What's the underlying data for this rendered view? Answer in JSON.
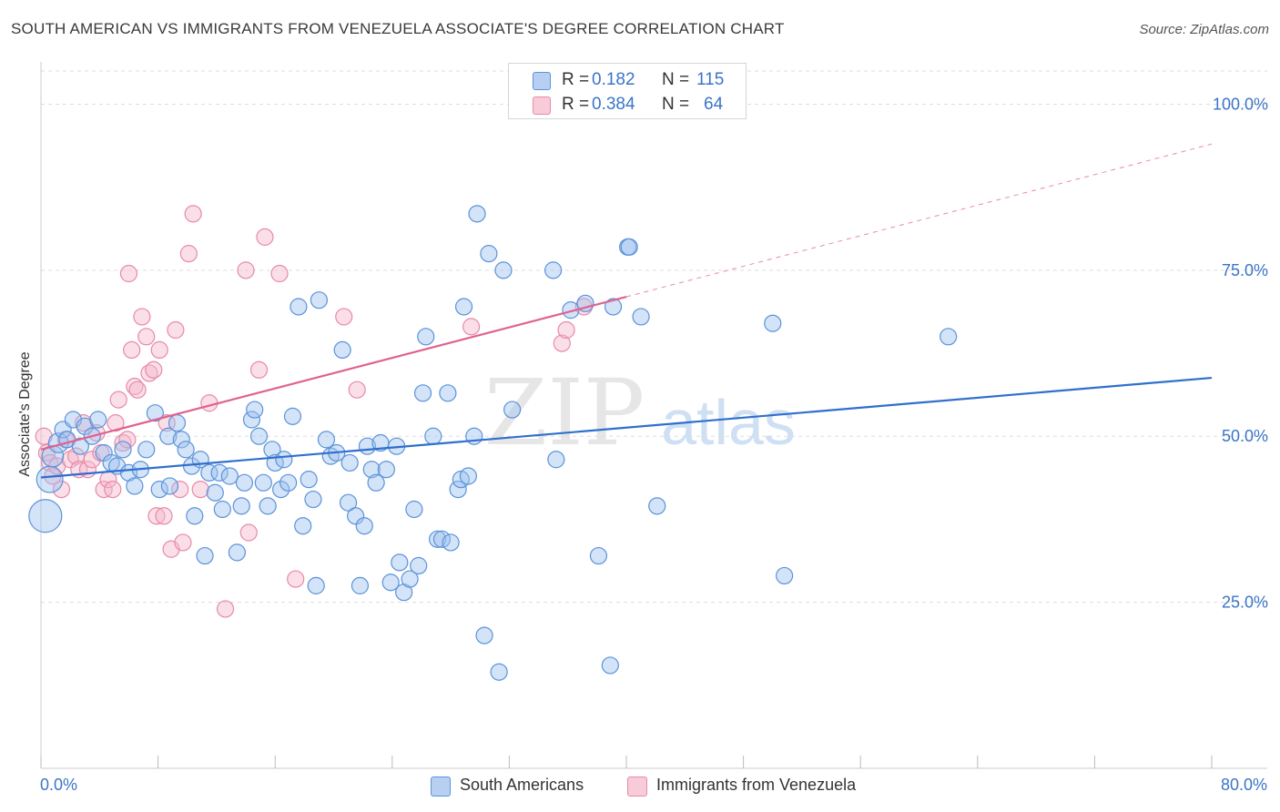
{
  "title": "SOUTH AMERICAN VS IMMIGRANTS FROM VENEZUELA ASSOCIATE'S DEGREE CORRELATION CHART",
  "source": "Source: ZipAtlas.com",
  "watermark": {
    "zip": "ZIP",
    "atlas": "atlas"
  },
  "colors": {
    "blue_fill": "#9ec2ef",
    "blue_stroke": "#5b93d9",
    "blue_line": "#2f6fcd",
    "pink_fill": "#f4b8cb",
    "pink_stroke": "#e889a8",
    "pink_line": "#e0628e",
    "axis_text": "#3b74c8",
    "grid": "#dddddd"
  },
  "legend_top": [
    {
      "r_label": "R =",
      "r_value": "0.182",
      "n_label": "N =",
      "n_value": "115",
      "color": "#9ec2ef"
    },
    {
      "r_label": "R =",
      "r_value": "0.384",
      "n_label": "N =",
      "n_value": "64",
      "color": "#f4b8cb"
    }
  ],
  "chart_data": {
    "type": "scatter",
    "title": "SOUTH AMERICAN VS IMMIGRANTS FROM VENEZUELA ASSOCIATE'S DEGREE CORRELATION CHART",
    "xlabel": "",
    "ylabel": "Associate's Degree",
    "xlim": [
      0,
      80
    ],
    "ylim": [
      0,
      105
    ],
    "x_tick_labels": [
      "0.0%",
      "80.0%"
    ],
    "y_ticks": [
      25,
      50,
      75,
      100
    ],
    "y_tick_labels": [
      "25.0%",
      "50.0%",
      "75.0%",
      "100.0%"
    ],
    "grid": true,
    "legend_position": "bottom",
    "series": [
      {
        "name": "South Americans",
        "color": "#9ec2ef",
        "trend": {
          "x": [
            0,
            80
          ],
          "y": [
            43.8,
            58.8
          ]
        },
        "points": [
          [
            0.3,
            38,
            2
          ],
          [
            0.6,
            43.5,
            1.6
          ],
          [
            0.8,
            47,
            1.3
          ],
          [
            1.2,
            49,
            1.2
          ],
          [
            1.5,
            51,
            1
          ],
          [
            1.8,
            49.5,
            1
          ],
          [
            2.2,
            52.5,
            1
          ],
          [
            2.7,
            48.5,
            1
          ],
          [
            3,
            51.5,
            1
          ],
          [
            3.5,
            50,
            1
          ],
          [
            3.9,
            52.5,
            1
          ],
          [
            4.3,
            47.5,
            1
          ],
          [
            4.8,
            46,
            1
          ],
          [
            5.2,
            45.5,
            1
          ],
          [
            5.6,
            48,
            1
          ],
          [
            6,
            44.5,
            1
          ],
          [
            6.4,
            42.5,
            1
          ],
          [
            6.8,
            45,
            1
          ],
          [
            7.2,
            48,
            1
          ],
          [
            7.8,
            53.5,
            1
          ],
          [
            8.1,
            42,
            1
          ],
          [
            8.7,
            50,
            1
          ],
          [
            8.8,
            42.5,
            1
          ],
          [
            9.3,
            52,
            1
          ],
          [
            9.6,
            49.5,
            1
          ],
          [
            9.9,
            48,
            1
          ],
          [
            10.3,
            45.5,
            1
          ],
          [
            10.5,
            38,
            1
          ],
          [
            10.9,
            46.5,
            1
          ],
          [
            11.2,
            32,
            1
          ],
          [
            11.5,
            44.5,
            1
          ],
          [
            11.9,
            41.5,
            1
          ],
          [
            12.2,
            44.5,
            1
          ],
          [
            12.4,
            39,
            1
          ],
          [
            12.9,
            44,
            1
          ],
          [
            13.4,
            32.5,
            1
          ],
          [
            13.7,
            39.5,
            1
          ],
          [
            13.9,
            43,
            1
          ],
          [
            14.4,
            52.5,
            1
          ],
          [
            14.6,
            54,
            1
          ],
          [
            14.9,
            50,
            1
          ],
          [
            15.2,
            43,
            1
          ],
          [
            15.5,
            39.5,
            1
          ],
          [
            15.8,
            48,
            1
          ],
          [
            16,
            46,
            1
          ],
          [
            16.4,
            42,
            1
          ],
          [
            16.6,
            46.5,
            1
          ],
          [
            16.9,
            43,
            1
          ],
          [
            17.2,
            53,
            1
          ],
          [
            17.6,
            69.5,
            1
          ],
          [
            17.9,
            36.5,
            1
          ],
          [
            18.3,
            43.5,
            1
          ],
          [
            18.6,
            40.5,
            1
          ],
          [
            18.8,
            27.5,
            1
          ],
          [
            19,
            70.5,
            1
          ],
          [
            19.5,
            49.5,
            1
          ],
          [
            19.8,
            47,
            1
          ],
          [
            20.2,
            47.5,
            1
          ],
          [
            20.6,
            63,
            1
          ],
          [
            21,
            40,
            1
          ],
          [
            21.1,
            46,
            1
          ],
          [
            21.5,
            38,
            1
          ],
          [
            21.8,
            27.5,
            1
          ],
          [
            22.1,
            36.5,
            1
          ],
          [
            22.3,
            48.5,
            1
          ],
          [
            22.6,
            45,
            1
          ],
          [
            22.9,
            43,
            1
          ],
          [
            23.2,
            49,
            1
          ],
          [
            23.6,
            45,
            1
          ],
          [
            23.9,
            28,
            1
          ],
          [
            24.3,
            48.5,
            1
          ],
          [
            24.5,
            31,
            1
          ],
          [
            24.8,
            26.5,
            1
          ],
          [
            25.2,
            28.5,
            1
          ],
          [
            25.5,
            39,
            1
          ],
          [
            25.8,
            30.5,
            1
          ],
          [
            26.1,
            56.5,
            1
          ],
          [
            26.3,
            65,
            1
          ],
          [
            26.8,
            50,
            1
          ],
          [
            27.1,
            34.5,
            1
          ],
          [
            27.4,
            34.5,
            1
          ],
          [
            27.8,
            56.5,
            1
          ],
          [
            28,
            34,
            1
          ],
          [
            28.5,
            42,
            1
          ],
          [
            28.7,
            43.5,
            1
          ],
          [
            28.9,
            69.5,
            1
          ],
          [
            29.2,
            44,
            1
          ],
          [
            29.6,
            50,
            1
          ],
          [
            29.8,
            83.5,
            1
          ],
          [
            30.3,
            20,
            1
          ],
          [
            30.6,
            77.5,
            1
          ],
          [
            31.3,
            14.5,
            1
          ],
          [
            31.6,
            75,
            1
          ],
          [
            32.2,
            54,
            1
          ],
          [
            35,
            75,
            1
          ],
          [
            35.2,
            46.5,
            1
          ],
          [
            36.2,
            69,
            1
          ],
          [
            37.2,
            70,
            1
          ],
          [
            38.1,
            32,
            1
          ],
          [
            38.9,
            15.5,
            1
          ],
          [
            39.1,
            69.5,
            1
          ],
          [
            40.1,
            78.5,
            1
          ],
          [
            40.2,
            78.5,
            1
          ],
          [
            41,
            68,
            1
          ],
          [
            42.1,
            39.5,
            1
          ],
          [
            50,
            67,
            1
          ],
          [
            50.8,
            29,
            1
          ],
          [
            62,
            65,
            1
          ]
        ]
      },
      {
        "name": "Immigrants from Venezuela",
        "color": "#f4b8cb",
        "trend": {
          "x": [
            0,
            40
          ],
          "y": [
            48,
            71
          ]
        },
        "trend_extension": {
          "x": [
            40,
            80
          ],
          "y": [
            71,
            94
          ]
        },
        "points": [
          [
            0.2,
            50,
            1
          ],
          [
            0.4,
            47.5,
            1
          ],
          [
            0.6,
            46,
            1
          ],
          [
            0.8,
            44,
            1
          ],
          [
            1.1,
            45.5,
            1
          ],
          [
            1.4,
            42,
            1
          ],
          [
            1.7,
            49.5,
            1
          ],
          [
            2,
            46.5,
            1
          ],
          [
            2.4,
            47,
            1
          ],
          [
            2.6,
            45,
            1
          ],
          [
            2.9,
            52,
            1
          ],
          [
            3.2,
            45,
            1
          ],
          [
            3.5,
            46.5,
            1
          ],
          [
            3.8,
            50.5,
            1
          ],
          [
            4.1,
            47.5,
            1
          ],
          [
            4.3,
            42,
            1
          ],
          [
            4.6,
            43.5,
            1
          ],
          [
            4.9,
            42,
            1
          ],
          [
            5.1,
            52,
            1
          ],
          [
            5.3,
            55.5,
            1
          ],
          [
            5.6,
            49,
            1
          ],
          [
            5.9,
            49.5,
            1
          ],
          [
            6,
            74.5,
            1
          ],
          [
            6.2,
            63,
            1
          ],
          [
            6.4,
            57.5,
            1
          ],
          [
            6.6,
            57,
            1
          ],
          [
            6.9,
            68,
            1
          ],
          [
            7.2,
            65,
            1
          ],
          [
            7.4,
            59.5,
            1
          ],
          [
            7.7,
            60,
            1
          ],
          [
            7.9,
            38,
            1
          ],
          [
            8.1,
            63,
            1
          ],
          [
            8.4,
            38,
            1
          ],
          [
            8.6,
            52,
            1
          ],
          [
            8.9,
            33,
            1
          ],
          [
            9.2,
            66,
            1
          ],
          [
            9.5,
            42,
            1
          ],
          [
            9.7,
            34,
            1
          ],
          [
            10.1,
            77.5,
            1
          ],
          [
            10.4,
            83.5,
            1
          ],
          [
            10.9,
            42,
            1
          ],
          [
            11.5,
            55,
            1
          ],
          [
            12.6,
            24,
            1
          ],
          [
            14,
            75,
            1
          ],
          [
            14.2,
            35.5,
            1
          ],
          [
            14.9,
            60,
            1
          ],
          [
            15.3,
            80,
            1
          ],
          [
            16.3,
            74.5,
            1
          ],
          [
            17.4,
            28.5,
            1
          ],
          [
            20.7,
            68,
            1
          ],
          [
            21.6,
            57,
            1
          ],
          [
            29.4,
            66.5,
            1
          ],
          [
            35.6,
            64,
            1
          ],
          [
            35.9,
            66,
            1
          ],
          [
            37.1,
            69.5,
            1
          ]
        ]
      }
    ]
  }
}
